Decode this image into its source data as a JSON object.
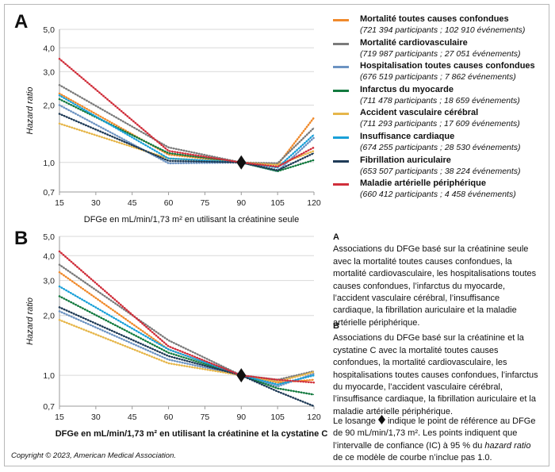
{
  "panels": {
    "a": {
      "letter": "A",
      "xlabel": "DFGe en mL/min/1,73 m² en utilisant la créatinine seule"
    },
    "b": {
      "letter": "B",
      "xlabel": "DFGe en mL/min/1,73 m² en utilisant la créatinine et la cystatine C"
    }
  },
  "legend": [
    {
      "name": "Mortalité toutes causes confondues",
      "sub": "(721 394 participants ; 102 910 événements)",
      "color": "#f08a2c"
    },
    {
      "name": "Mortalité cardiovasculaire",
      "sub": "(719 987 participants ; 27 051 événements)",
      "color": "#7b7b7b"
    },
    {
      "name": "Hospitalisation toutes causes confondues",
      "sub": "(676 519 participants ; 7 862 événements)",
      "color": "#6c93c2"
    },
    {
      "name": "Infarctus du myocarde",
      "sub": "(711 478 participants ; 18 659 événements)",
      "color": "#137a3f"
    },
    {
      "name": "Accident vasculaire cérébral",
      "sub": "(711 293 participants ; 17 609 événements)",
      "color": "#e6b64a"
    },
    {
      "name": "Insuffisance cardiaque",
      "sub": "(674 255 participants ; 28 530 événements)",
      "color": "#1aa0d8"
    },
    {
      "name": "Fibrillation auriculaire",
      "sub": "(653 507 participants ; 38 224 événements)",
      "color": "#1f3b57"
    },
    {
      "name": "Maladie artérielle périphérique",
      "sub": "(660 412 participants ; 4 458 événements)",
      "color": "#d02f3b"
    }
  ],
  "notes": {
    "a_head": "A",
    "a_text": "Associations du DFGe basé sur la créatinine seule avec la mortalité toutes causes confondues, la mortalité cardiovasculaire, les hospitalisations toutes causes confondues, l’infarctus du myocarde, l’accident vasculaire cérébral, l’insuffisance cardiaque, la fibrillation auriculaire et la maladie artérielle périphérique.",
    "b_head": "B",
    "b_text": "Associations du DFGe basé sur la créatinine et la cystatine C avec la mortalité toutes causes confondues, la mortalité cardiovasculaire, les hospitalisations toutes causes confondues, l’infarctus du myocarde, l’accident vasculaire cérébral, l’insuffisance cardiaque, la fibrillation auriculaire et la maladie artérielle périphérique.",
    "diamond_before": "Le losange",
    "diamond_after": "indique le point de référence au DFGe de 90 mL/min/1,73 m². Les points indiquent que l’intervalle de confiance (IC) à 95 % du",
    "diamond_italic": "hazard ratio",
    "diamond_end": "de ce modèle de courbe n’inclue pas 1.0."
  },
  "copyright": "Copyright © 2023, American Medical Association.",
  "chart_data": [
    {
      "type": "line",
      "panel": "A",
      "ylabel": "Hazard ratio",
      "xlabel": "DFGe en mL/min/1,73 m² en utilisant la créatinine seule",
      "y_scale": "log",
      "ylim": [
        0.7,
        5.0
      ],
      "y_ticks": [
        "0,7",
        "1,0",
        "2,0",
        "3,0",
        "4,0",
        "5,0"
      ],
      "y_tick_values": [
        0.7,
        1.0,
        2.0,
        3.0,
        4.0,
        5.0
      ],
      "x_ticks": [
        15,
        30,
        45,
        60,
        75,
        90,
        105,
        120
      ],
      "xlim": [
        15,
        120
      ],
      "reference_point": {
        "x": 90,
        "y": 1.0
      },
      "x": [
        15,
        60,
        90,
        105,
        120
      ],
      "series": [
        {
          "name": "Mortalité toutes causes confondues",
          "color": "#f08a2c",
          "values": [
            2.3,
            1.1,
            1.0,
            0.97,
            1.72
          ]
        },
        {
          "name": "Mortalité cardiovasculaire",
          "color": "#7b7b7b",
          "values": [
            2.55,
            1.2,
            1.0,
            0.99,
            1.52
          ]
        },
        {
          "name": "Hospitalisation toutes causes confondues",
          "color": "#6c93c2",
          "values": [
            2.0,
            0.99,
            1.0,
            0.9,
            1.35
          ]
        },
        {
          "name": "Infarctus du myocarde",
          "color": "#137a3f",
          "values": [
            2.15,
            1.12,
            1.0,
            0.9,
            1.03
          ]
        },
        {
          "name": "Accident vasculaire cérébral",
          "color": "#e6b64a",
          "values": [
            1.6,
            1.05,
            1.0,
            0.97,
            1.15
          ]
        },
        {
          "name": "Insuffisance cardiaque",
          "color": "#1aa0d8",
          "values": [
            2.25,
            1.05,
            1.0,
            0.94,
            1.4
          ]
        },
        {
          "name": "Fibrillation auriculaire",
          "color": "#1f3b57",
          "values": [
            1.8,
            1.02,
            1.0,
            0.91,
            1.12
          ]
        },
        {
          "name": "Maladie artérielle périphérique",
          "color": "#d02f3b",
          "values": [
            3.5,
            1.15,
            1.0,
            0.95,
            1.2
          ]
        }
      ]
    },
    {
      "type": "line",
      "panel": "B",
      "ylabel": "Hazard ratio",
      "xlabel": "DFGe en mL/min/1,73 m² en utilisant la créatinine et la cystatine C",
      "y_scale": "log",
      "ylim": [
        0.7,
        5.0
      ],
      "y_ticks": [
        "0,7",
        "1,0",
        "2,0",
        "3,0",
        "4,0",
        "5,0"
      ],
      "y_tick_values": [
        0.7,
        1.0,
        2.0,
        3.0,
        4.0,
        5.0
      ],
      "x_ticks": [
        15,
        30,
        45,
        60,
        75,
        90,
        105,
        120
      ],
      "xlim": [
        15,
        120
      ],
      "reference_point": {
        "x": 90,
        "y": 1.0
      },
      "x": [
        15,
        60,
        90,
        105,
        120
      ],
      "series": [
        {
          "name": "Mortalité toutes causes confondues",
          "color": "#f08a2c",
          "values": [
            3.3,
            1.35,
            1.0,
            0.92,
            0.95
          ]
        },
        {
          "name": "Mortalité cardiovasculaire",
          "color": "#7b7b7b",
          "values": [
            3.6,
            1.5,
            1.0,
            0.95,
            1.05
          ]
        },
        {
          "name": "Hospitalisation toutes causes confondues",
          "color": "#6c93c2",
          "values": [
            2.1,
            1.2,
            1.0,
            0.88,
            1.02
          ]
        },
        {
          "name": "Infarctus du myocarde",
          "color": "#137a3f",
          "values": [
            2.5,
            1.3,
            1.0,
            0.86,
            0.8
          ]
        },
        {
          "name": "Accident vasculaire cérébral",
          "color": "#e6b64a",
          "values": [
            1.9,
            1.15,
            1.0,
            0.93,
            1.04
          ]
        },
        {
          "name": "Insuffisance cardiaque",
          "color": "#1aa0d8",
          "values": [
            2.8,
            1.35,
            1.0,
            0.9,
            1.0
          ]
        },
        {
          "name": "Fibrillation auriculaire",
          "color": "#1f3b57",
          "values": [
            2.2,
            1.25,
            1.0,
            0.83,
            0.7
          ]
        },
        {
          "name": "Maladie artérielle périphérique",
          "color": "#d02f3b",
          "values": [
            4.2,
            1.4,
            1.0,
            0.95,
            0.92
          ]
        }
      ]
    }
  ]
}
